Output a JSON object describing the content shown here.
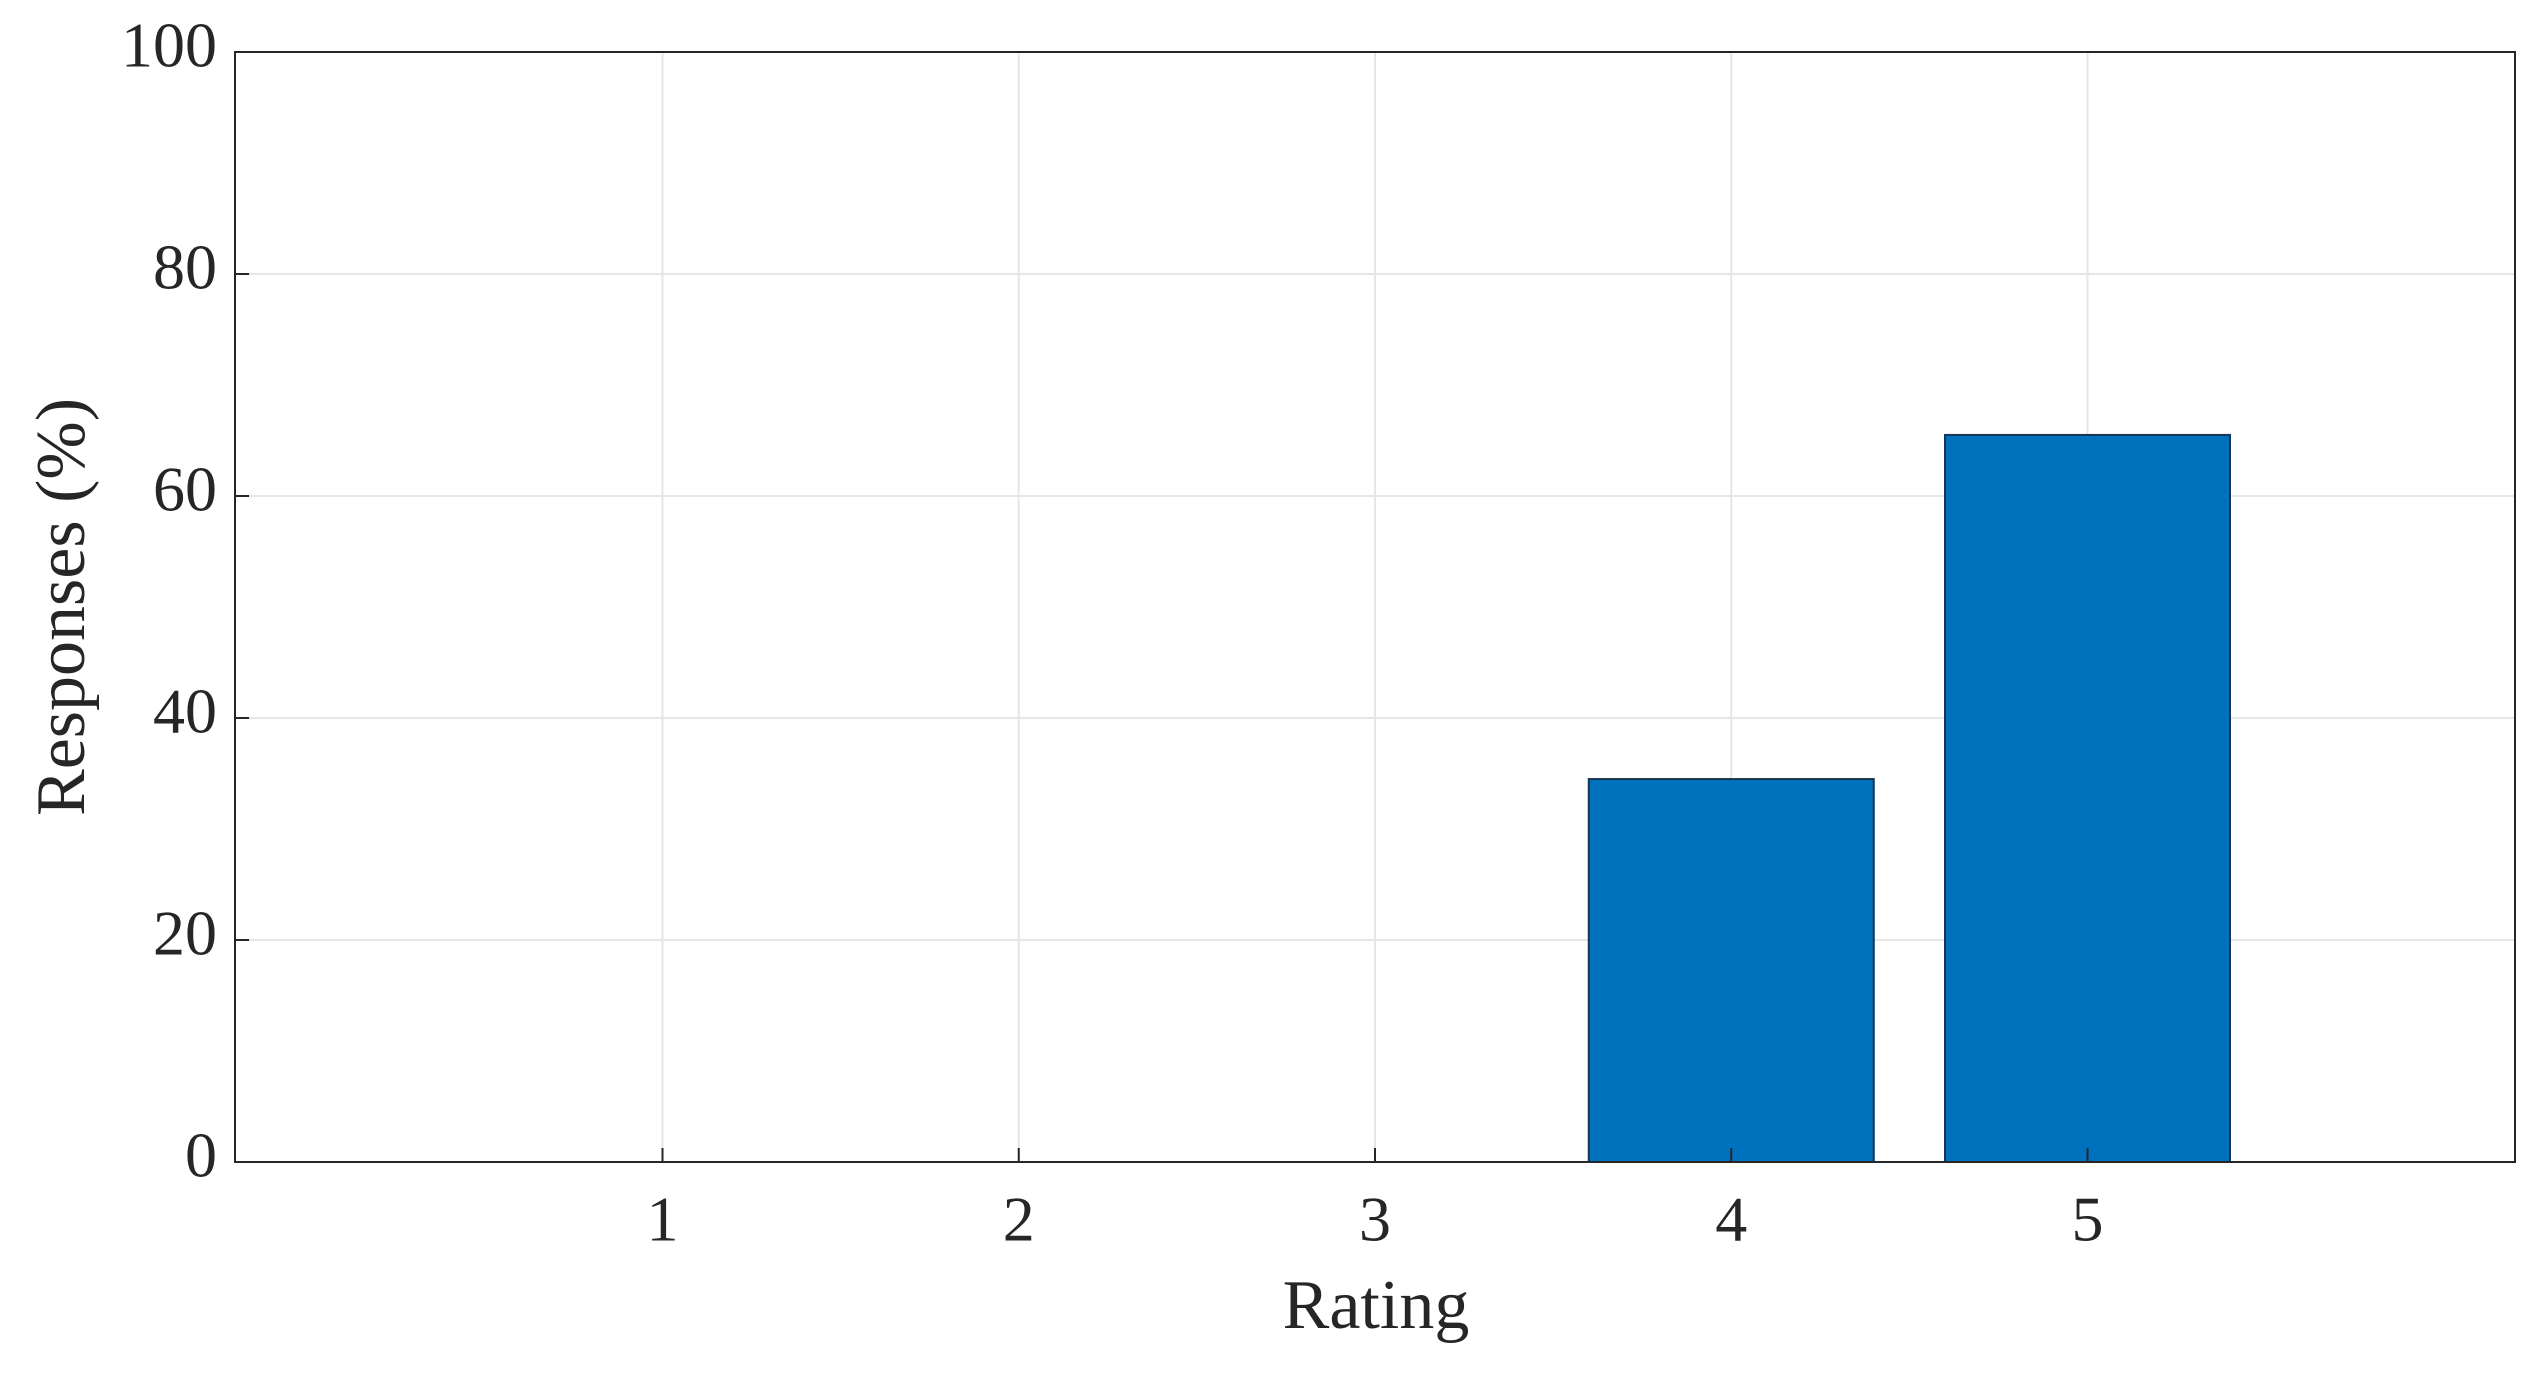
{
  "chart_data": {
    "type": "bar",
    "x_label": "Rating",
    "y_label": "Responses (%)",
    "x": [
      1,
      2,
      3,
      4,
      5
    ],
    "values": [
      0,
      0,
      0,
      34.5,
      65.5
    ],
    "color": "#0072bd",
    "bar_width": 0.8,
    "xlim": [
      -0.2,
      6.2
    ],
    "xticks": [
      1,
      2,
      3,
      4,
      5
    ],
    "ylim": [
      0,
      100
    ],
    "yticks": [
      0,
      20,
      40,
      60,
      80,
      100
    ],
    "grid": true
  }
}
